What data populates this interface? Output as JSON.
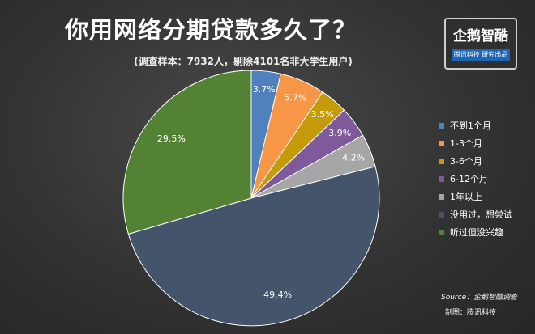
{
  "title": "你用网络分期贷款多久了？",
  "subtitle": "(调查样本：7932人，剔除4101名非大学生用户)",
  "logo": {
    "name": "企鹅智酷",
    "tagline": "腾讯科技 研究出品"
  },
  "source": "Source：企鹅智酷调查",
  "maker": "制图：腾讯科技",
  "chart_data": {
    "type": "pie",
    "title": "你用网络分期贷款多久了？",
    "legend_position": "right",
    "slices": [
      {
        "label": "不到1个月",
        "value": 3.7,
        "display": "3.7%",
        "color": "#4f81bd"
      },
      {
        "label": "1-3个月",
        "value": 5.7,
        "display": "5.7%",
        "color": "#f79646"
      },
      {
        "label": "3-6个月",
        "value": 3.5,
        "display": "3.5%",
        "color": "#c59a0b"
      },
      {
        "label": "6-12个月",
        "value": 3.9,
        "display": "3.9%",
        "color": "#7e5a9b"
      },
      {
        "label": "1年以上",
        "value": 4.2,
        "display": "4.2%",
        "color": "#a6a6a6"
      },
      {
        "label": "没用过，想尝试",
        "value": 49.4,
        "display": "49.4%",
        "color": "#44546a"
      },
      {
        "label": "听过但没兴趣",
        "value": 29.5,
        "display": "29.5%",
        "color": "#548235"
      }
    ]
  }
}
